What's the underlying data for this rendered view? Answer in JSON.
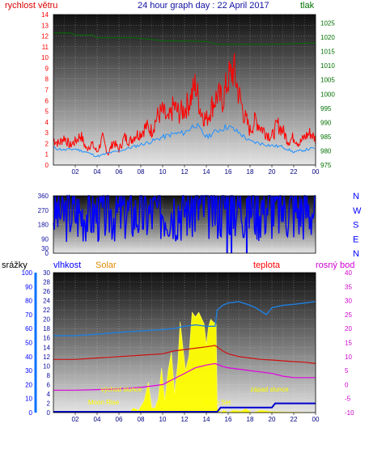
{
  "title": "24 hour graph day : 22 April 2017",
  "labels": {
    "wind_speed": "rychlost větru",
    "pressure": "tlak",
    "precip": "srážky",
    "humidity": "vlhkost",
    "solar": "Solar",
    "temp": "teplota",
    "dewpoint": "rosný bod",
    "sunrise": "východ slunce",
    "sunset": "západ slunce",
    "moonrise": "Moon Rise",
    "moonset": "Moon Set"
  },
  "colors": {
    "wind": "#ff0000",
    "wind_avg": "#1e90ff",
    "pressure": "#007000",
    "direction": "#0000ff",
    "humidity": "#1e7fe0",
    "solar": "#ffff00",
    "temp": "#d01010",
    "dewpoint": "#e000e0",
    "precip": "#0000d0",
    "accent_blue": "#0000ff",
    "accent_red": "#ff0000",
    "accent_green": "#007000",
    "accent_orange": "#ff9900",
    "accent_magenta": "#d000d0"
  },
  "x_ticks": [
    "02",
    "04",
    "06",
    "08",
    "10",
    "12",
    "14",
    "16",
    "18",
    "20",
    "22",
    "00"
  ],
  "compass": [
    "N",
    "W",
    "S",
    "E",
    "N"
  ],
  "chart_data": [
    {
      "type": "line",
      "name": "wind_pressure",
      "xlim": [
        0,
        24
      ],
      "y_left": {
        "label": "rychlost větru",
        "ylim": [
          0,
          14
        ],
        "ticks": [
          "0",
          "1",
          "2",
          "3",
          "4",
          "5",
          "6",
          "7",
          "8",
          "9",
          "10",
          "11",
          "12",
          "13",
          "14"
        ]
      },
      "y_right": {
        "label": "tlak",
        "ylim": [
          975,
          1028
        ],
        "ticks": [
          "975",
          "980",
          "985",
          "990",
          "995",
          "1000",
          "1005",
          "1010",
          "1015",
          "1020",
          "1025"
        ]
      },
      "series": [
        {
          "axis": "right",
          "x": [
            0,
            1.6,
            2.0,
            3.6,
            4.0,
            7.5,
            10.0,
            14.0,
            15.0,
            20.0,
            24.0
          ],
          "y": [
            1021.5,
            1021.5,
            1020.8,
            1020.8,
            1019.8,
            1019.8,
            1018.8,
            1018.5,
            1017.5,
            1017.5,
            1018.0
          ]
        },
        {
          "axis": "left",
          "x": [
            0,
            0.5,
            1,
            1.5,
            2,
            2.5,
            3,
            3.5,
            4,
            4.5,
            5,
            5.5,
            6,
            6.5,
            7,
            7.5,
            8,
            8.5,
            9,
            9.5,
            10,
            10.5,
            11,
            11.5,
            12,
            12.5,
            13,
            13.5,
            14,
            14.5,
            15,
            15.5,
            16,
            16.5,
            17,
            17.5,
            18,
            18.5,
            19,
            19.5,
            20,
            20.5,
            21,
            21.5,
            22,
            22.5,
            23,
            23.5,
            24
          ],
          "y": [
            2.4,
            2.0,
            2.6,
            1.8,
            2.2,
            2.8,
            1.5,
            2.0,
            1.2,
            2.5,
            1.0,
            2.2,
            1.4,
            2.6,
            2.2,
            2.8,
            3.0,
            3.6,
            3.2,
            4.5,
            5.0,
            4.0,
            5.5,
            4.8,
            5.2,
            6.0,
            7.5,
            5.0,
            4.2,
            5.5,
            6.5,
            6.0,
            8.0,
            8.9,
            6.5,
            4.5,
            3.2,
            4.2,
            3.5,
            3.0,
            2.6,
            3.8,
            3.2,
            2.2,
            2.6,
            2.0,
            2.6,
            3.0,
            2.4
          ]
        },
        {
          "axis": "left",
          "x": [
            0,
            1,
            2,
            3,
            4,
            5,
            6,
            7,
            8,
            9,
            10,
            11,
            12,
            13,
            14,
            15,
            16,
            17,
            18,
            19,
            20,
            21,
            22,
            23,
            24
          ],
          "y": [
            1.6,
            1.4,
            1.5,
            1.2,
            0.8,
            1.1,
            1.3,
            1.6,
            1.9,
            2.2,
            2.6,
            2.9,
            3.0,
            3.8,
            2.6,
            3.2,
            3.6,
            3.0,
            2.2,
            2.0,
            1.8,
            1.7,
            1.2,
            1.4,
            1.6
          ]
        }
      ]
    },
    {
      "type": "line",
      "name": "wind_direction",
      "xlim": [
        0,
        24
      ],
      "ylim": [
        0,
        360
      ],
      "y_ticks": [
        "0",
        "30",
        "90",
        "180",
        "270",
        "360"
      ],
      "series": [
        {
          "x": [
            0,
            0.5,
            1,
            1.5,
            2,
            2.5,
            3,
            3.5,
            4,
            4.5,
            5,
            5.5,
            6,
            6.5,
            7,
            7.5,
            8,
            8.5,
            9,
            9.5,
            10,
            10.5,
            11,
            11.5,
            12,
            12.5,
            13,
            13.5,
            14,
            14.5,
            15,
            15.5,
            16,
            16.5,
            17,
            17.5,
            18,
            18.5,
            19,
            19.5,
            20,
            20.5,
            21,
            21.5,
            22,
            22.5,
            23,
            23.5,
            24
          ],
          "y": [
            255,
            262,
            250,
            268,
            258,
            250,
            262,
            256,
            248,
            252,
            265,
            258,
            250,
            262,
            255,
            248,
            240,
            246,
            252,
            268,
            282,
            285,
            290,
            292,
            295,
            300,
            305,
            300,
            308,
            302,
            305,
            318,
            320,
            335,
            305,
            300,
            320,
            315,
            298,
            310,
            300,
            290,
            295,
            288,
            285,
            278,
            290,
            280,
            288
          ]
        }
      ]
    },
    {
      "type": "line",
      "name": "humidity_solar_temp",
      "xlim": [
        0,
        24
      ],
      "y_left_precip": {
        "label": "srážky",
        "ylim": [
          0,
          100
        ],
        "ticks": [
          "0",
          "10",
          "20",
          "30",
          "40",
          "50",
          "60",
          "70",
          "80",
          "90",
          "100"
        ]
      },
      "y_left_humidity": {
        "label": "vlhkost",
        "ylim": [
          0,
          30
        ],
        "ticks": [
          "0",
          "2",
          "4",
          "6",
          "8",
          "10",
          "12",
          "14",
          "16",
          "18",
          "20",
          "22",
          "24",
          "26",
          "28",
          "30"
        ]
      },
      "y_right_temp": {
        "label": "teplota",
        "ylim": [
          -10,
          40
        ],
        "ticks": [
          "-10",
          "-5",
          "0",
          "5",
          "10",
          "15",
          "20",
          "25",
          "30",
          "35",
          "40"
        ]
      },
      "series": [
        {
          "axis": "humidity",
          "x": [
            0,
            2,
            4,
            6,
            8,
            10,
            11,
            12,
            13,
            14,
            14.8,
            15.0,
            15.5,
            16,
            17,
            18,
            18.5,
            19.5,
            20,
            21,
            22,
            23,
            24
          ],
          "y": [
            16.5,
            16.5,
            16.8,
            17.2,
            17.5,
            17.8,
            18.0,
            18.5,
            18.8,
            18.5,
            18.5,
            22.0,
            23.0,
            23.5,
            23.8,
            23.0,
            22.5,
            21.0,
            22.5,
            23.0,
            23.2,
            23.5,
            23.8
          ]
        },
        {
          "axis": "temp",
          "x": [
            0,
            2,
            4,
            6,
            8,
            10,
            11,
            12,
            13,
            14,
            14.8,
            15.5,
            16,
            17,
            18,
            19,
            20,
            21,
            22,
            23,
            24
          ],
          "y": [
            9.0,
            9.0,
            9.5,
            10.0,
            10.5,
            11.0,
            12.0,
            12.5,
            13.0,
            13.5,
            14.0,
            12.0,
            11.0,
            10.0,
            9.5,
            9.0,
            8.8,
            8.5,
            8.2,
            8.0,
            7.5
          ]
        },
        {
          "axis": "temp",
          "x": [
            0,
            2,
            4,
            6,
            8,
            10,
            11,
            12,
            13,
            14,
            14.8,
            15.5,
            16,
            17,
            18,
            19,
            20,
            21,
            22,
            23,
            24
          ],
          "y": [
            -2.0,
            -2.0,
            -1.8,
            -1.5,
            -1.0,
            0.0,
            2.0,
            4.0,
            6.0,
            7.0,
            7.5,
            6.5,
            6.0,
            5.5,
            5.0,
            4.5,
            4.0,
            3.0,
            2.5,
            2.5,
            2.5
          ]
        },
        {
          "axis": "humidity",
          "x": [
            0,
            7.0,
            7.3,
            7.8,
            8.3,
            8.7,
            9.0,
            9.3,
            9.6,
            9.9,
            10.2,
            10.5,
            10.8,
            11.1,
            11.4,
            11.6,
            11.9,
            12.1,
            12.4,
            12.7,
            13.0,
            13.3,
            13.5,
            13.8,
            14.0,
            14.2,
            14.4,
            14.6,
            14.9,
            15.0,
            15.3,
            15.6,
            16.0,
            16.5,
            17.2,
            17.6,
            18.2,
            19.0,
            20.0,
            24
          ],
          "y": [
            0,
            0,
            1.0,
            0.5,
            2.5,
            6.5,
            1.0,
            1.0,
            3.0,
            9.5,
            2.5,
            9.0,
            13.0,
            4.0,
            11.0,
            19.5,
            13.0,
            9.0,
            12.0,
            21.5,
            20.5,
            21.5,
            20.5,
            19.0,
            14.5,
            18.5,
            20.0,
            19.5,
            19.0,
            1.0,
            0.0,
            0.5,
            0.0,
            0.5,
            0.3,
            0.8,
            0.0,
            0.5,
            0.2,
            0
          ]
        },
        {
          "axis": "precip",
          "x": [
            0,
            15.0,
            15.3,
            20.0,
            20.3,
            24
          ],
          "y": [
            0,
            0,
            3,
            3,
            6,
            6
          ]
        }
      ]
    }
  ]
}
